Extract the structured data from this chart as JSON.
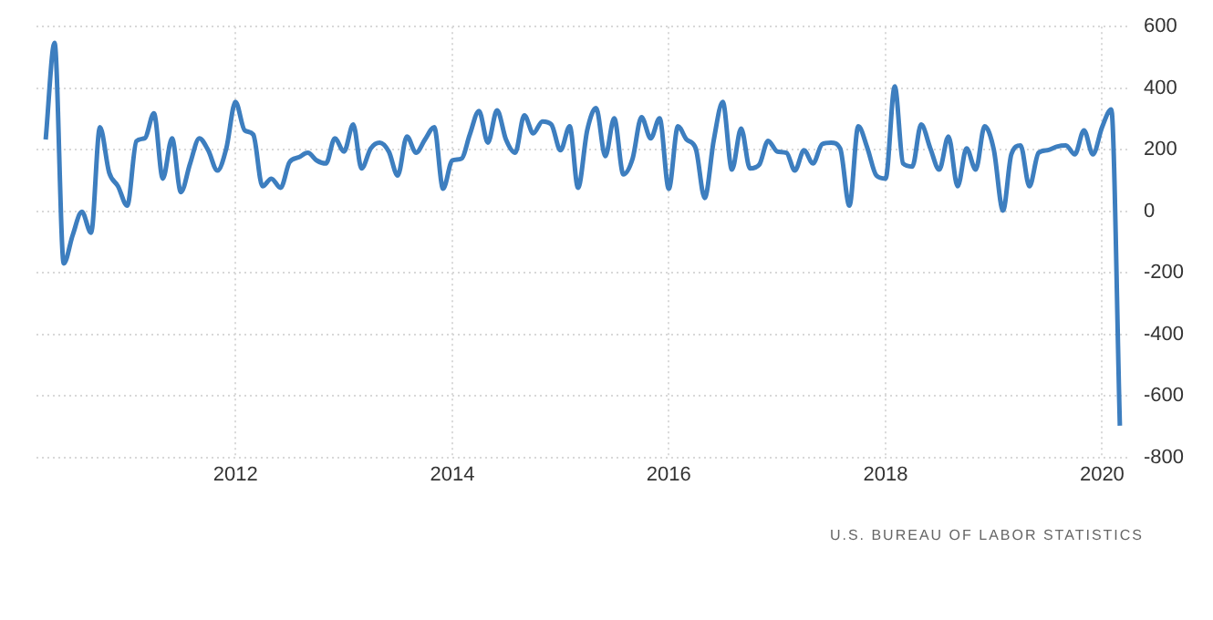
{
  "chart_data": {
    "type": "line",
    "color": "#3d7ebf",
    "grid": true,
    "legend": false,
    "marker": "none",
    "line_style": "solid",
    "x": [
      "2010-04",
      "2010-05",
      "2010-06",
      "2010-07",
      "2010-08",
      "2010-09",
      "2010-10",
      "2010-11",
      "2010-12",
      "2011-01",
      "2011-02",
      "2011-03",
      "2011-04",
      "2011-05",
      "2011-06",
      "2011-07",
      "2011-08",
      "2011-09",
      "2011-10",
      "2011-11",
      "2011-12",
      "2012-01",
      "2012-02",
      "2012-03",
      "2012-04",
      "2012-05",
      "2012-06",
      "2012-07",
      "2012-08",
      "2012-09",
      "2012-10",
      "2012-11",
      "2012-12",
      "2013-01",
      "2013-02",
      "2013-03",
      "2013-04",
      "2013-05",
      "2013-06",
      "2013-07",
      "2013-08",
      "2013-09",
      "2013-10",
      "2013-11",
      "2013-12",
      "2014-01",
      "2014-02",
      "2014-03",
      "2014-04",
      "2014-05",
      "2014-06",
      "2014-07",
      "2014-08",
      "2014-09",
      "2014-10",
      "2014-11",
      "2014-12",
      "2015-01",
      "2015-02",
      "2015-03",
      "2015-04",
      "2015-05",
      "2015-06",
      "2015-07",
      "2015-08",
      "2015-09",
      "2015-10",
      "2015-11",
      "2015-12",
      "2016-01",
      "2016-02",
      "2016-03",
      "2016-04",
      "2016-05",
      "2016-06",
      "2016-07",
      "2016-08",
      "2016-09",
      "2016-10",
      "2016-11",
      "2016-12",
      "2017-01",
      "2017-02",
      "2017-03",
      "2017-04",
      "2017-05",
      "2017-06",
      "2017-07",
      "2017-08",
      "2017-09",
      "2017-10",
      "2017-11",
      "2017-12",
      "2018-01",
      "2018-02",
      "2018-03",
      "2018-04",
      "2018-05",
      "2018-06",
      "2018-07",
      "2018-08",
      "2018-09",
      "2018-10",
      "2018-11",
      "2018-12",
      "2019-01",
      "2019-02",
      "2019-03",
      "2019-04",
      "2019-05",
      "2019-06",
      "2019-07",
      "2019-08",
      "2019-09",
      "2019-10",
      "2019-11",
      "2019-12",
      "2020-01",
      "2020-02",
      "2020-03"
    ],
    "values": [
      233,
      547,
      -170,
      -78,
      -2,
      -70,
      273,
      126,
      81,
      18,
      228,
      237,
      318,
      106,
      237,
      62,
      155,
      237,
      198,
      132,
      204,
      355,
      263,
      249,
      81,
      106,
      76,
      159,
      175,
      190,
      165,
      155,
      237,
      194,
      282,
      139,
      204,
      223,
      194,
      116,
      243,
      190,
      233,
      273,
      73,
      165,
      171,
      249,
      326,
      223,
      328,
      233,
      190,
      312,
      253,
      292,
      282,
      198,
      276,
      76,
      263,
      335,
      179,
      302,
      120,
      171,
      306,
      237,
      302,
      73,
      276,
      233,
      204,
      43,
      233,
      355,
      135,
      269,
      139,
      151,
      229,
      194,
      190,
      132,
      198,
      155,
      218,
      223,
      204,
      18,
      276,
      204,
      116,
      106,
      406,
      155,
      145,
      282,
      204,
      135,
      243,
      81,
      204,
      135,
      276,
      200,
      2,
      185,
      214,
      81,
      190,
      198,
      210,
      214,
      185,
      263,
      185,
      273,
      331,
      -697
    ],
    "xlim": [
      "2010-03",
      "2020-04"
    ],
    "xticks": [
      "2012",
      "2014",
      "2016",
      "2018",
      "2020"
    ],
    "ylim": [
      -800,
      600
    ],
    "yticks": [
      -800,
      -600,
      -400,
      -200,
      0,
      200,
      400,
      600
    ],
    "annotations": [
      "U.S. BUREAU OF LABOR STATISTICS"
    ]
  }
}
